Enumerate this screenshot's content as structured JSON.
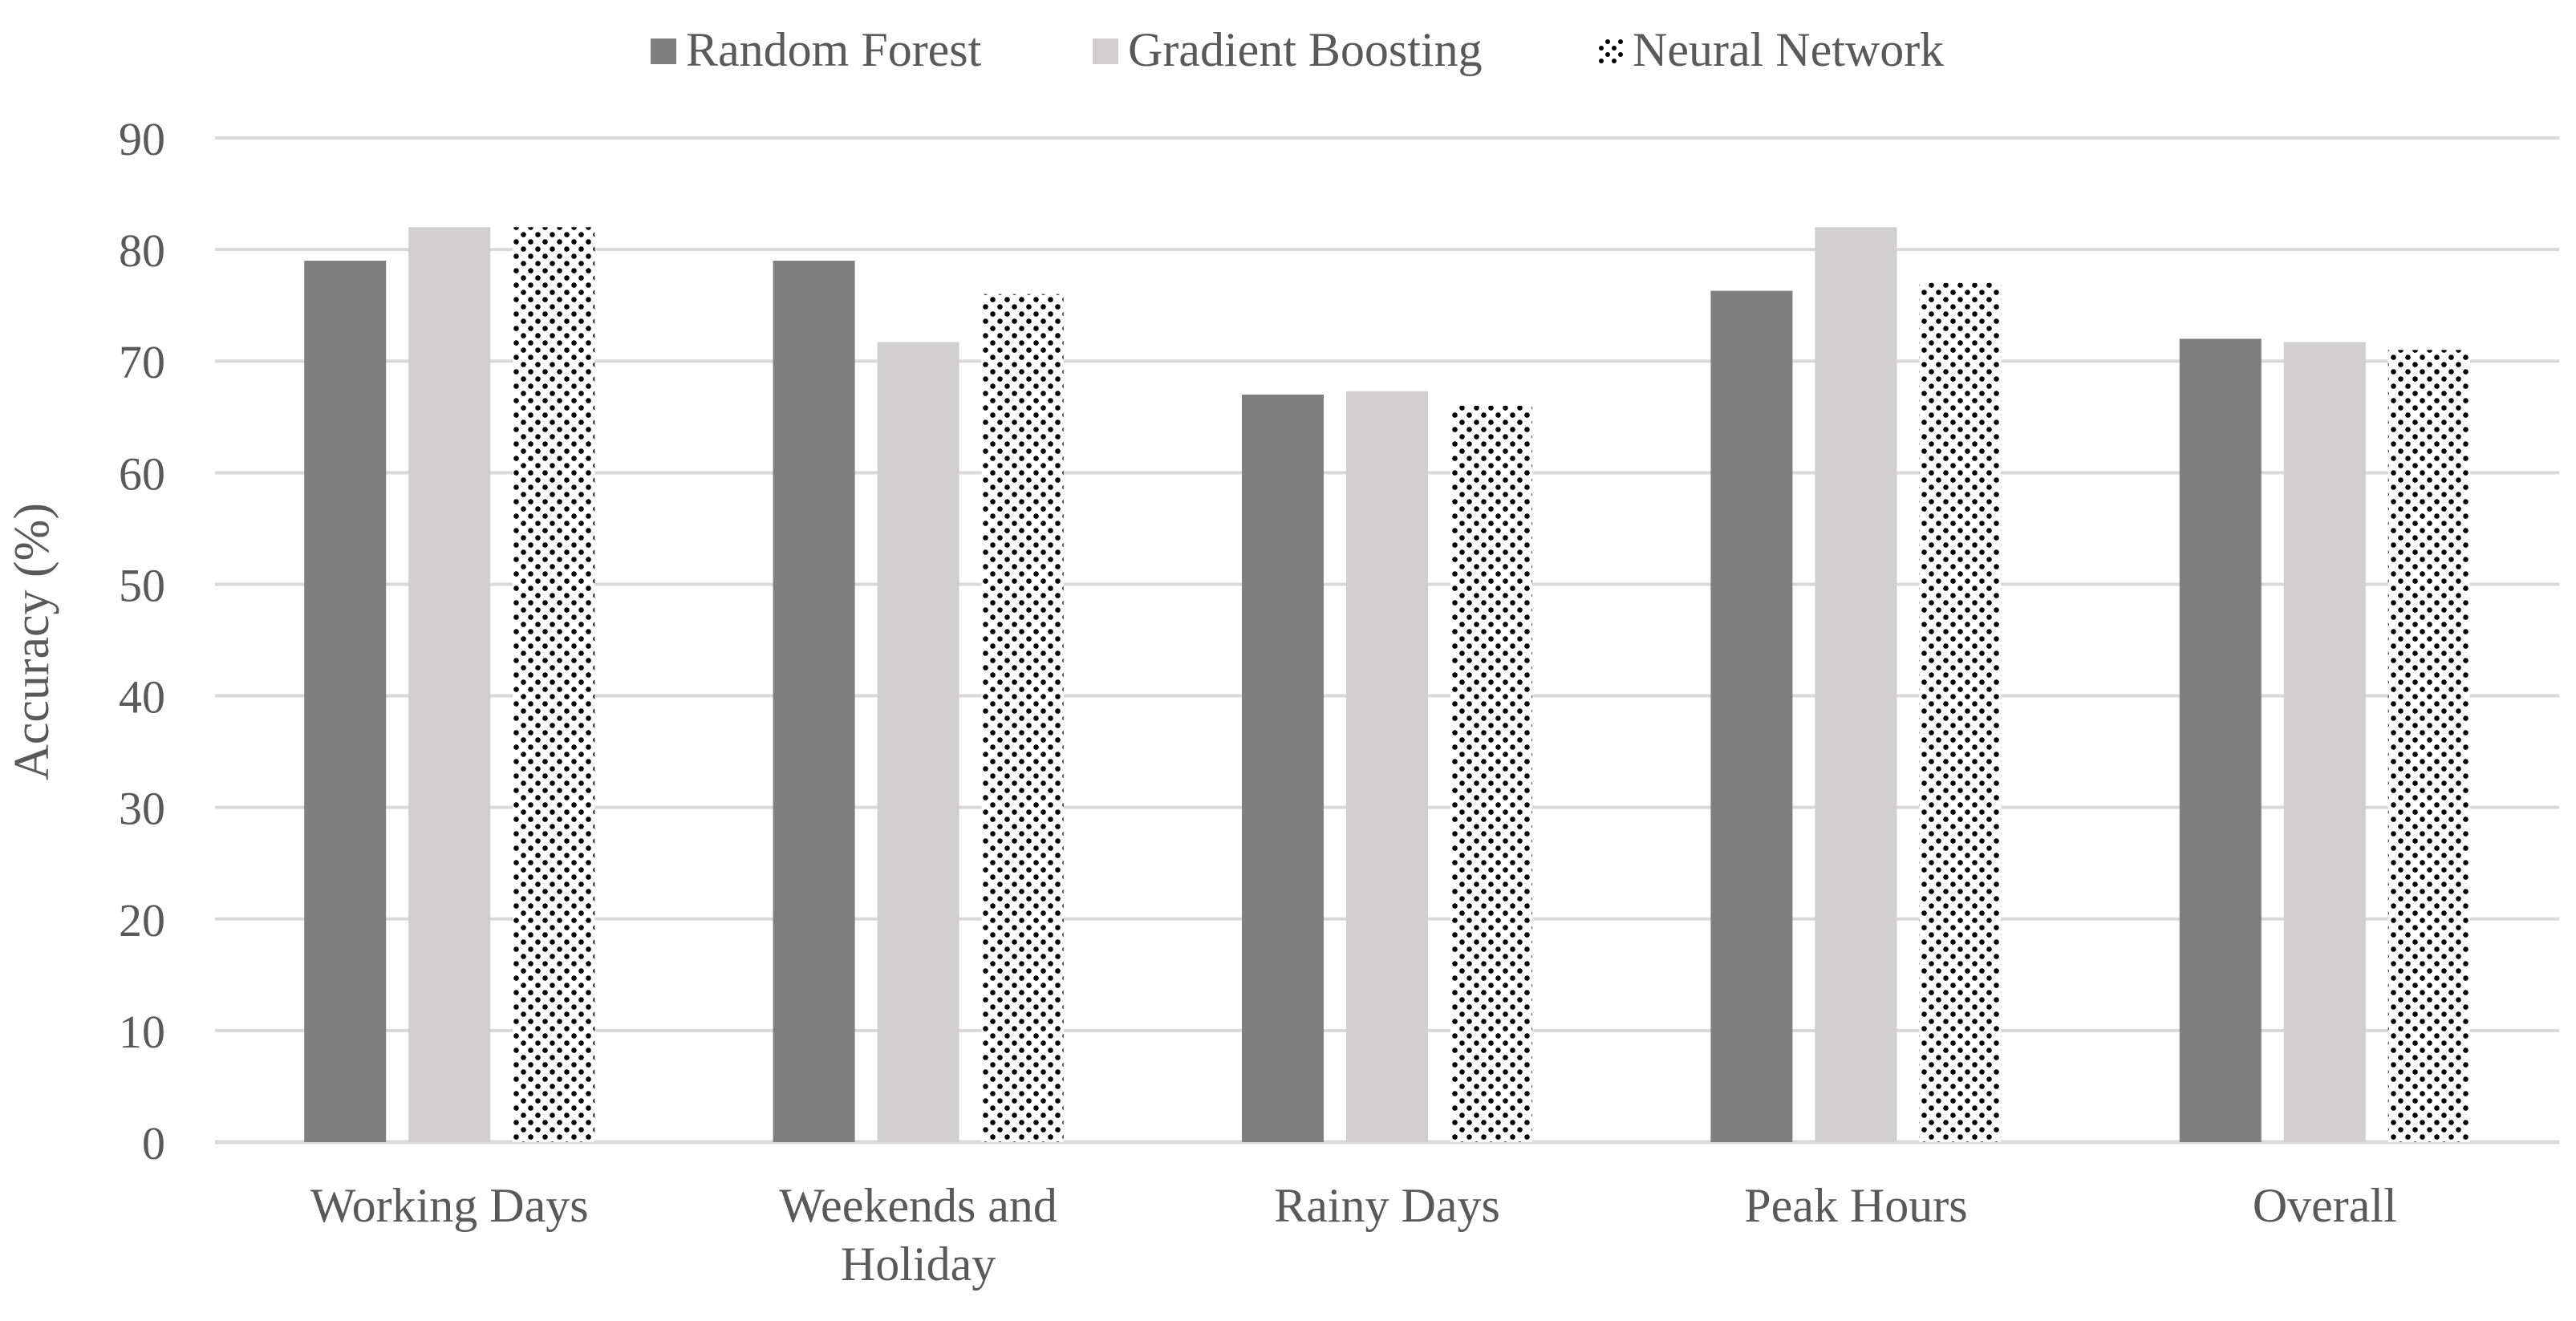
{
  "chart_data": {
    "type": "bar",
    "title": "",
    "xlabel": "",
    "ylabel": "Accuracy (%)",
    "ylim": [
      0,
      90
    ],
    "yticks": [
      0,
      10,
      20,
      30,
      40,
      50,
      60,
      70,
      80,
      90
    ],
    "grid": true,
    "legend_position": "top-center",
    "categories": [
      [
        "Working Days"
      ],
      [
        "Weekends and",
        "Holiday"
      ],
      [
        "Rainy Days"
      ],
      [
        "Peak Hours"
      ],
      [
        "Overall"
      ]
    ],
    "series": [
      {
        "name": "Random Forest",
        "values": [
          79,
          79,
          67,
          76.3,
          72
        ],
        "color": "#7f7f7f",
        "pattern": "solid"
      },
      {
        "name": "Gradient Boosting",
        "values": [
          82,
          71.7,
          67.3,
          82,
          71.7
        ],
        "color": "#d0cece",
        "pattern": "solid"
      },
      {
        "name": "Neural Network",
        "values": [
          82,
          76,
          66,
          77,
          71
        ],
        "color": "#000000",
        "pattern": "dots"
      }
    ],
    "colors": {
      "grid": "#d9d9d9",
      "text": "#595959"
    }
  }
}
